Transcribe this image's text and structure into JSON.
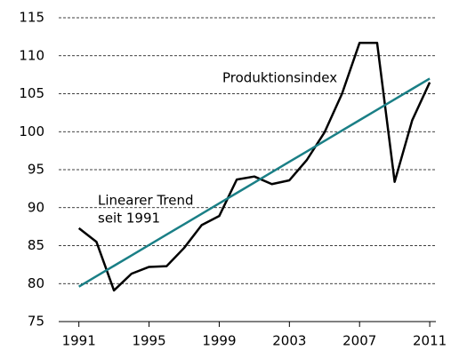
{
  "chart_data": {
    "type": "line",
    "x": [
      1991,
      1992,
      1993,
      1994,
      1995,
      1996,
      1997,
      1998,
      1999,
      2000,
      2001,
      2002,
      2003,
      2004,
      2005,
      2006,
      2007,
      2008,
      2009,
      2010,
      2011
    ],
    "series": [
      {
        "name": "Produktionsindex",
        "color": "#000000",
        "values": [
          87.3,
          85.5,
          79.1,
          81.3,
          82.2,
          82.3,
          84.7,
          87.7,
          88.9,
          93.7,
          94.1,
          93.1,
          93.6,
          96.3,
          99.9,
          105.0,
          111.7,
          111.7,
          93.4,
          101.5,
          106.5
        ]
      },
      {
        "name": "Linearer Trend",
        "color": "#1a7f86",
        "values": [
          79.6,
          80.97,
          82.34,
          83.71,
          85.08,
          86.45,
          87.82,
          89.19,
          90.56,
          91.93,
          93.3,
          94.67,
          96.04,
          97.41,
          98.78,
          100.15,
          101.52,
          102.89,
          104.26,
          105.63,
          107.0
        ]
      }
    ],
    "annotations": [
      "Produktionsindex",
      "Linearer Trend",
      "seit 1991"
    ],
    "xlim": [
      1989.85,
      2011.35
    ],
    "xticks": [
      1991,
      1995,
      1999,
      2003,
      2007,
      2011
    ],
    "ylim": [
      75,
      115
    ],
    "yticks": [
      75,
      80,
      85,
      90,
      95,
      100,
      105,
      110,
      115
    ],
    "grid": true
  }
}
